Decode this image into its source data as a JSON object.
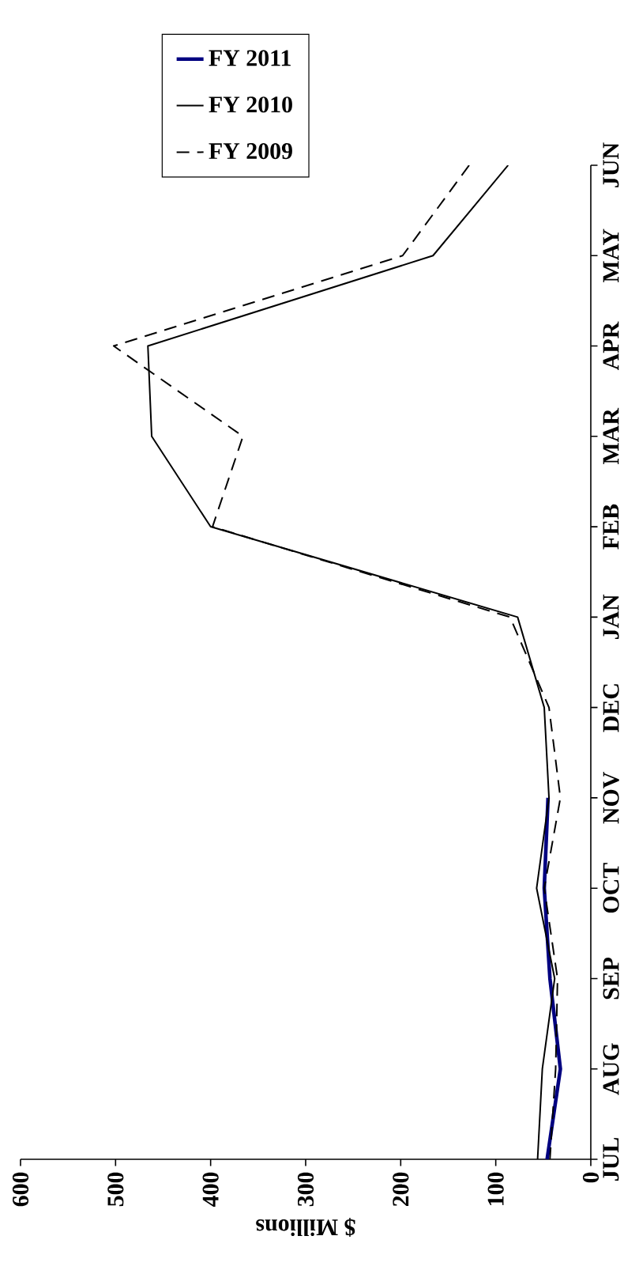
{
  "chart_data": {
    "type": "line",
    "orientation": "horizontal",
    "xlabel": "$ Millions",
    "categories": [
      "JUN",
      "MAY",
      "APR",
      "MAR",
      "FEB",
      "JAN",
      "DEC",
      "NOV",
      "OCT",
      "SEP",
      "AUG",
      "JUL"
    ],
    "xlim": [
      600,
      0
    ],
    "xticks": [
      0,
      100,
      200,
      300,
      400,
      500,
      600
    ],
    "grid": false,
    "legend": "top",
    "marker": "none",
    "series": [
      {
        "name": "FY 2011",
        "color": "#000080",
        "line_style": "solid",
        "values": [
          null,
          null,
          null,
          null,
          null,
          null,
          null,
          45,
          49,
          43,
          32,
          46
        ]
      },
      {
        "name": "FY 2010",
        "color": "#000000",
        "line_style": "solid",
        "values": [
          87,
          166,
          466,
          462,
          400,
          77,
          49,
          44,
          57,
          38,
          51,
          56
        ]
      },
      {
        "name": "FY 2009",
        "color": "#000000",
        "line_style": "dashed",
        "values": [
          128,
          198,
          502,
          366,
          398,
          85,
          44,
          32,
          49,
          35,
          37,
          43
        ]
      }
    ]
  }
}
